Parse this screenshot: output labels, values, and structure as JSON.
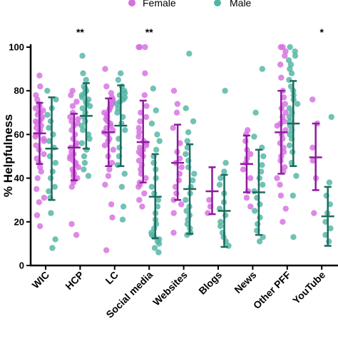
{
  "chart_data": {
    "type": "scatter",
    "ylabel": "% Helpfulness",
    "ylim": [
      0,
      100
    ],
    "yticks": [
      0,
      20,
      40,
      60,
      80,
      100
    ],
    "grid": false,
    "legend_placement": "top",
    "categories": [
      "WIC",
      "HCP",
      "LC",
      "Social media",
      "Websites",
      "Blogs",
      "News",
      "Other PFF",
      "YouTube"
    ],
    "series": [
      {
        "name": "Female",
        "color": "#d66fe0",
        "bar_color": "#8e1a9e",
        "mean": [
          60.5,
          54,
          61,
          56.5,
          47,
          34,
          46.5,
          61,
          49.5
        ],
        "sd_low": [
          46.5,
          39,
          45.5,
          38,
          30,
          23.5,
          33.5,
          42,
          34.5
        ],
        "sd_high": [
          74.5,
          69.5,
          76.5,
          75.5,
          64.5,
          45,
          59.5,
          80,
          65
        ],
        "points": [
          [
            87,
            82,
            78,
            76,
            74,
            73,
            72,
            71,
            70,
            70,
            69,
            68,
            67,
            66,
            66,
            65,
            64,
            63,
            62,
            61,
            60,
            59,
            58,
            57,
            55,
            53,
            51,
            49,
            47,
            45,
            43,
            40,
            35,
            31,
            29,
            23,
            18
          ],
          [
            80,
            78,
            75,
            73,
            70,
            68,
            67,
            66,
            65,
            64,
            62,
            60,
            58,
            56,
            55,
            54,
            52,
            51,
            50,
            49,
            48,
            47,
            46,
            45,
            44,
            43,
            42,
            41,
            40,
            39,
            38,
            36,
            19,
            14
          ],
          [
            90,
            82,
            79,
            77,
            76,
            75,
            74,
            73,
            72,
            71,
            70,
            69,
            68,
            67,
            66,
            65,
            64,
            63,
            62,
            61,
            60,
            58,
            57,
            55,
            53,
            50,
            47,
            44,
            41,
            37,
            28,
            22,
            7
          ],
          [
            100,
            100,
            100,
            88,
            78,
            73,
            70,
            68,
            66,
            63,
            61,
            59,
            57,
            56,
            55,
            54,
            53,
            52,
            51,
            50,
            48,
            46,
            44,
            42,
            40,
            38,
            37,
            36,
            33,
            30,
            27
          ],
          [
            80,
            74,
            70,
            63,
            56,
            52,
            49,
            47,
            45,
            42,
            39,
            36,
            33,
            30,
            28,
            24,
            15
          ],
          [
            30,
            27,
            24
          ],
          [
            62,
            60,
            57,
            53,
            51,
            49,
            47,
            44,
            40,
            34,
            31,
            27
          ],
          [
            100,
            100,
            98,
            96,
            92,
            86,
            80,
            77,
            74,
            72,
            70,
            68,
            66,
            65,
            64,
            62,
            60,
            58,
            56,
            54,
            52,
            50,
            48,
            45,
            43,
            40,
            37,
            32,
            26,
            20
          ],
          [
            76,
            65,
            54,
            48,
            40,
            24
          ]
        ]
      },
      {
        "name": "Male",
        "color": "#52b5a3",
        "bar_color": "#1b6b5c",
        "mean": [
          53.5,
          68.5,
          64,
          31.5,
          35,
          25,
          33.5,
          65,
          22.5
        ],
        "sd_low": [
          30,
          53.5,
          45.5,
          12.5,
          14.5,
          8.5,
          14,
          45.5,
          9
        ],
        "sd_high": [
          77,
          83.5,
          82.5,
          51,
          55.5,
          41.5,
          53,
          84.5,
          36
        ],
        "points": [
          [
            80,
            76,
            72,
            69,
            66,
            63,
            60,
            57,
            54,
            50,
            47,
            43,
            40,
            36,
            34,
            31,
            24,
            12,
            8
          ],
          [
            96,
            88,
            85,
            82,
            81,
            80,
            79,
            78,
            77,
            76,
            75,
            74,
            73,
            72,
            70,
            68,
            66,
            64,
            62,
            60,
            58,
            56,
            53,
            50,
            47,
            44,
            41
          ],
          [
            88,
            85,
            82,
            80,
            79,
            78,
            77,
            76,
            75,
            74,
            72,
            70,
            68,
            65,
            62,
            58,
            54,
            50,
            46,
            42,
            36,
            27,
            21
          ],
          [
            81,
            71,
            65,
            60,
            57,
            53,
            50,
            47,
            44,
            40,
            36,
            33,
            30,
            27,
            24,
            21,
            19,
            17,
            15,
            14,
            13,
            12,
            11,
            10,
            8,
            6
          ],
          [
            97,
            72,
            66,
            61,
            57,
            54,
            51,
            48,
            45,
            42,
            39,
            36,
            33,
            30,
            27,
            25,
            23,
            21,
            19,
            17,
            15,
            14
          ],
          [
            80,
            47,
            43,
            40,
            37,
            33,
            29,
            26,
            23,
            20,
            18,
            15,
            13,
            11,
            9
          ],
          [
            90,
            70,
            59,
            54,
            50,
            46,
            43,
            40,
            37,
            34,
            31,
            28,
            25,
            22,
            19,
            16,
            13,
            11
          ],
          [
            100,
            98,
            96,
            94,
            92,
            90,
            88,
            85,
            82,
            80,
            78,
            76,
            74,
            72,
            70,
            68,
            66,
            64,
            62,
            60,
            58,
            55,
            52,
            47,
            41,
            32,
            13
          ],
          [
            68,
            38,
            32,
            28,
            24,
            20,
            17,
            14,
            11
          ]
        ]
      }
    ],
    "annotations": [
      {
        "category": "HCP",
        "text": "**"
      },
      {
        "category": "Social media",
        "text": "**"
      },
      {
        "category": "YouTube",
        "text": "*"
      }
    ]
  }
}
